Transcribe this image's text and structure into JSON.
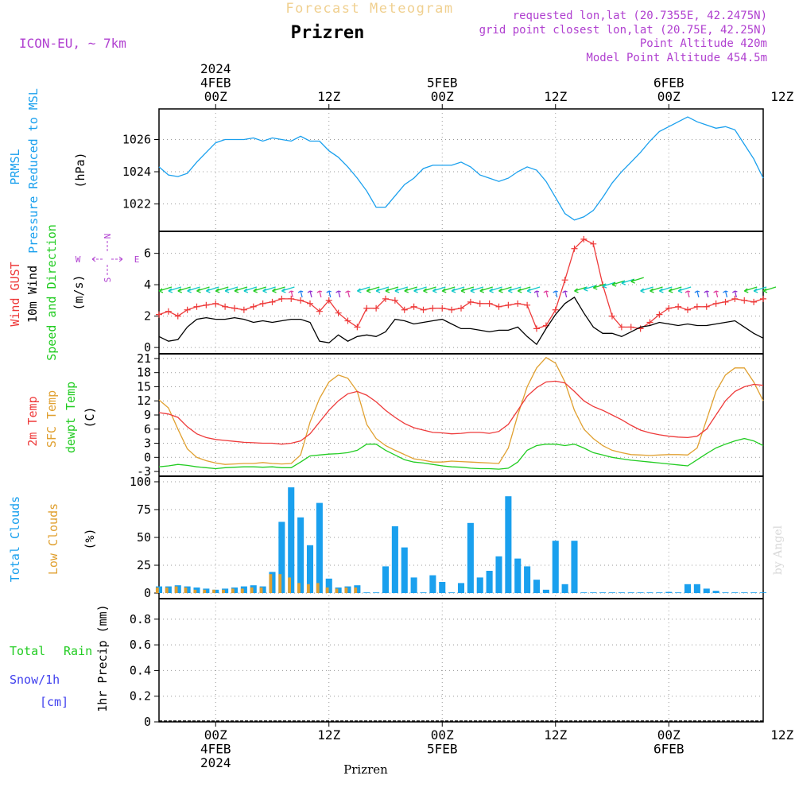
{
  "header": {
    "product": "Forecast Meteogram",
    "station": "Prizren",
    "model": "ICON-EU, ~ 7km",
    "requested": "requested lon,lat (20.7355E, 42.2475N)",
    "grid_point": "grid point closest lon,lat (20.75E, 42.25N)",
    "point_altitude": "Point Altitude 420m",
    "model_altitude": "Model Point Altitude 454.5m",
    "footer_station": "Prizren",
    "watermark": "by Angel"
  },
  "colors": {
    "pressure": "#1aa0ee",
    "gust": "#ee3a3a",
    "wind": "#000000",
    "temp": "#ee3a3a",
    "sfc_temp": "#e0a030",
    "dewpt": "#22cc22",
    "total_cloud": "#1aa0ee",
    "low_cloud": "#e0a030",
    "label_purple": "#b040d0",
    "title_gold": "#f0d090",
    "rain_green": "#22cc22",
    "snow_blue": "#4040ee"
  },
  "time_axis": {
    "start_hour": -6,
    "end_hour": 58,
    "top_ticks": [
      {
        "h": 0,
        "lines": [
          "2024",
          "4FEB",
          "00Z"
        ]
      },
      {
        "h": 12,
        "lines": [
          "12Z"
        ]
      },
      {
        "h": 24,
        "lines": [
          "5FEB",
          "00Z"
        ]
      },
      {
        "h": 36,
        "lines": [
          "12Z"
        ]
      },
      {
        "h": 48,
        "lines": [
          "6FEB",
          "00Z"
        ]
      },
      {
        "h": 60,
        "lines": [
          "12Z"
        ]
      }
    ],
    "bottom_ticks": [
      {
        "h": 0,
        "lines": [
          "00Z",
          "4FEB",
          "2024"
        ]
      },
      {
        "h": 12,
        "lines": [
          "12Z"
        ]
      },
      {
        "h": 24,
        "lines": [
          "00Z",
          "5FEB"
        ]
      },
      {
        "h": 36,
        "lines": [
          "12Z"
        ]
      },
      {
        "h": 48,
        "lines": [
          "00Z",
          "6FEB"
        ]
      },
      {
        "h": 60,
        "lines": [
          "12Z"
        ]
      }
    ]
  },
  "panels": {
    "pressure": {
      "labels": [
        "PRMSL",
        "Pressure Reduced to MSL"
      ],
      "unit": "(hPa)",
      "yticks": [
        "1022",
        "1024",
        "1026"
      ]
    },
    "wind": {
      "labels": [
        "Wind GUST",
        "10m Wind",
        "Speed and Direction"
      ],
      "unit": "(m/s)",
      "yticks": [
        "0",
        "2",
        "4",
        "6"
      ],
      "compass": {
        "n": "N",
        "s": "S",
        "w": "W",
        "e": "E"
      }
    },
    "temp": {
      "labels": [
        "2m Temp",
        "SFC Temp",
        "dewpt Temp"
      ],
      "unit": "(C)",
      "yticks": [
        "-3",
        "0",
        "3",
        "6",
        "9",
        "12",
        "15",
        "18",
        "21"
      ]
    },
    "cloud": {
      "labels": [
        "Total Clouds",
        "Low Clouds"
      ],
      "unit": "(%)",
      "yticks": [
        "0",
        "25",
        "50",
        "75",
        "100"
      ]
    },
    "precip": {
      "labels": [
        "Total",
        "Rain",
        "Snow/1h",
        "[cm]"
      ],
      "unit": "1hr Precip (mm)",
      "yticks": [
        "0",
        "0.2",
        "0.4",
        "0.6",
        "0.8"
      ]
    }
  },
  "chart_data": [
    {
      "type": "line",
      "name": "PRMSL",
      "ylabel": "(hPa)",
      "ylim": [
        1020.3,
        1027.9
      ],
      "x_hours": [
        -6,
        -5,
        -4,
        -3,
        -2,
        -1,
        0,
        1,
        2,
        3,
        4,
        5,
        6,
        7,
        8,
        9,
        10,
        11,
        12,
        13,
        14,
        15,
        16,
        17,
        18,
        19,
        20,
        21,
        22,
        23,
        24,
        25,
        26,
        27,
        28,
        29,
        30,
        31,
        32,
        33,
        34,
        35,
        36,
        37,
        38,
        39,
        40,
        41,
        42,
        43,
        44,
        45,
        46,
        47,
        48,
        49,
        50,
        51,
        52,
        53,
        54,
        55,
        56,
        57,
        58
      ],
      "series": [
        {
          "values": [
            1024.3,
            1023.8,
            1023.7,
            1023.9,
            1024.6,
            1025.2,
            1025.8,
            1026.0,
            1026.0,
            1026.0,
            1026.1,
            1025.9,
            1026.1,
            1026.0,
            1025.9,
            1026.2,
            1025.9,
            1025.9,
            1025.3,
            1024.9,
            1024.3,
            1023.6,
            1022.8,
            1021.8,
            1021.8,
            1022.5,
            1023.2,
            1023.6,
            1024.2,
            1024.4,
            1024.4,
            1024.4,
            1024.6,
            1024.3,
            1023.8,
            1023.6,
            1023.4,
            1023.6,
            1024.0,
            1024.3,
            1024.1,
            1023.4,
            1022.4,
            1021.4,
            1021.0,
            1021.2,
            1021.6,
            1022.4,
            1023.3,
            1024.0,
            1024.6,
            1025.2,
            1025.9,
            1026.5,
            1026.8,
            1027.1,
            1027.4,
            1027.1,
            1026.9,
            1026.7,
            1026.8,
            1026.6,
            1025.7,
            1024.8,
            1023.6
          ]
        }
      ]
    },
    {
      "type": "line",
      "name": "Wind",
      "ylabel": "(m/s)",
      "ylim": [
        -0.4,
        7.4
      ],
      "x_hours": [
        -6,
        -5,
        -4,
        -3,
        -2,
        -1,
        0,
        1,
        2,
        3,
        4,
        5,
        6,
        7,
        8,
        9,
        10,
        11,
        12,
        13,
        14,
        15,
        16,
        17,
        18,
        19,
        20,
        21,
        22,
        23,
        24,
        25,
        26,
        27,
        28,
        29,
        30,
        31,
        32,
        33,
        34,
        35,
        36,
        37,
        38,
        39,
        40,
        41,
        42,
        43,
        44,
        45,
        46,
        47,
        48,
        49,
        50,
        51,
        52,
        53,
        54,
        55,
        56,
        57,
        58
      ],
      "series": [
        {
          "name": "Wind GUST",
          "marker": "+",
          "values": [
            2.1,
            2.3,
            2.0,
            2.4,
            2.6,
            2.7,
            2.8,
            2.6,
            2.5,
            2.4,
            2.6,
            2.8,
            2.9,
            3.1,
            3.1,
            3.0,
            2.8,
            2.3,
            3.0,
            2.2,
            1.7,
            1.3,
            2.5,
            2.5,
            3.1,
            3.0,
            2.4,
            2.6,
            2.4,
            2.5,
            2.5,
            2.4,
            2.5,
            2.9,
            2.8,
            2.8,
            2.6,
            2.7,
            2.8,
            2.7,
            1.2,
            1.4,
            2.4,
            4.3,
            6.3,
            6.9,
            6.6,
            4.0,
            2.0,
            1.3,
            1.3,
            1.2,
            1.6,
            2.1,
            2.5,
            2.6,
            2.4,
            2.6,
            2.6,
            2.8,
            2.9,
            3.1,
            3.0,
            2.9,
            3.1
          ]
        },
        {
          "name": "10m Wind",
          "values": [
            0.7,
            0.4,
            0.5,
            1.3,
            1.8,
            1.9,
            1.8,
            1.8,
            1.9,
            1.8,
            1.6,
            1.7,
            1.6,
            1.7,
            1.8,
            1.8,
            1.6,
            0.4,
            0.3,
            0.8,
            0.4,
            0.7,
            0.8,
            0.7,
            1.0,
            1.8,
            1.7,
            1.5,
            1.6,
            1.7,
            1.8,
            1.5,
            1.2,
            1.2,
            1.1,
            1.0,
            1.1,
            1.1,
            1.3,
            0.7,
            0.2,
            1.2,
            2.1,
            2.8,
            3.2,
            2.2,
            1.3,
            0.9,
            0.9,
            0.7,
            1.0,
            1.3,
            1.4,
            1.6,
            1.5,
            1.4,
            1.5,
            1.4,
            1.4,
            1.5,
            1.6,
            1.7,
            1.3,
            0.9,
            0.6
          ]
        }
      ]
    },
    {
      "type": "line",
      "name": "Temperature",
      "ylabel": "(C)",
      "ylim": [
        -4,
        22
      ],
      "x_hours": [
        -6,
        -5,
        -4,
        -3,
        -2,
        -1,
        0,
        1,
        2,
        3,
        4,
        5,
        6,
        7,
        8,
        9,
        10,
        11,
        12,
        13,
        14,
        15,
        16,
        17,
        18,
        19,
        20,
        21,
        22,
        23,
        24,
        25,
        26,
        27,
        28,
        29,
        30,
        31,
        32,
        33,
        34,
        35,
        36,
        37,
        38,
        39,
        40,
        41,
        42,
        43,
        44,
        45,
        46,
        47,
        48,
        49,
        50,
        51,
        52,
        53,
        54,
        55,
        56,
        57,
        58
      ],
      "series": [
        {
          "name": "2m Temp",
          "values": [
            9.5,
            9.2,
            8.5,
            6.5,
            5.0,
            4.2,
            3.8,
            3.6,
            3.4,
            3.2,
            3.1,
            3.0,
            3.0,
            2.8,
            3.0,
            3.5,
            5.0,
            7.5,
            10.0,
            12.0,
            13.5,
            14.0,
            13.2,
            11.8,
            10.0,
            8.5,
            7.2,
            6.3,
            5.8,
            5.3,
            5.2,
            5.0,
            5.1,
            5.3,
            5.3,
            5.1,
            5.5,
            7.0,
            10.0,
            13.0,
            14.8,
            16.0,
            16.2,
            15.8,
            14.0,
            12.0,
            10.8,
            10.0,
            9.0,
            8.0,
            6.8,
            5.8,
            5.2,
            4.8,
            4.5,
            4.3,
            4.2,
            4.5,
            6.0,
            9.0,
            12.0,
            14.0,
            15.0,
            15.5,
            15.3
          ]
        },
        {
          "name": "SFC Temp",
          "values": [
            12.2,
            10.5,
            6.0,
            1.8,
            0.0,
            -0.7,
            -1.2,
            -1.5,
            -1.4,
            -1.3,
            -1.3,
            -1.1,
            -1.3,
            -1.4,
            -1.3,
            0.5,
            7.5,
            12.5,
            16.0,
            17.5,
            16.8,
            14.0,
            7.0,
            4.0,
            2.5,
            1.5,
            0.6,
            -0.3,
            -0.6,
            -1.0,
            -1.0,
            -0.8,
            -0.9,
            -1.0,
            -1.1,
            -1.2,
            -1.3,
            2.0,
            9.0,
            15.0,
            19.0,
            21.2,
            20.0,
            16.0,
            10.0,
            6.0,
            4.0,
            2.5,
            1.5,
            1.0,
            0.6,
            0.5,
            0.4,
            0.5,
            0.6,
            0.6,
            0.5,
            2.0,
            8.0,
            14.0,
            17.5,
            19.0,
            19.0,
            16.0,
            12.0
          ]
        },
        {
          "name": "dewpt Temp",
          "values": [
            -2.0,
            -1.8,
            -1.5,
            -1.7,
            -2.0,
            -2.2,
            -2.4,
            -2.2,
            -2.1,
            -2.0,
            -2.0,
            -2.1,
            -2.0,
            -2.2,
            -2.2,
            -1.0,
            0.3,
            0.5,
            0.7,
            0.8,
            1.0,
            1.5,
            2.8,
            2.8,
            1.5,
            0.5,
            -0.5,
            -1.0,
            -1.2,
            -1.5,
            -1.8,
            -2.0,
            -2.1,
            -2.3,
            -2.4,
            -2.4,
            -2.5,
            -2.3,
            -1.0,
            1.5,
            2.5,
            2.8,
            2.8,
            2.5,
            2.8,
            2.0,
            1.0,
            0.5,
            0.0,
            -0.3,
            -0.6,
            -0.8,
            -1.0,
            -1.2,
            -1.4,
            -1.6,
            -1.8,
            -0.5,
            0.8,
            2.0,
            2.8,
            3.5,
            4.0,
            3.5,
            2.5
          ]
        }
      ]
    },
    {
      "type": "bar",
      "name": "Clouds",
      "ylabel": "(%)",
      "ylim": [
        -5,
        105
      ],
      "x_hours": [
        -6,
        -5,
        -4,
        -3,
        -2,
        -1,
        0,
        1,
        2,
        3,
        4,
        5,
        6,
        7,
        8,
        9,
        10,
        11,
        12,
        13,
        14,
        15,
        16,
        17,
        18,
        19,
        20,
        21,
        22,
        23,
        24,
        25,
        26,
        27,
        28,
        29,
        30,
        31,
        32,
        33,
        34,
        35,
        36,
        37,
        38,
        39,
        40,
        41,
        42,
        43,
        44,
        45,
        46,
        47,
        48,
        49,
        50,
        51,
        52,
        53,
        54,
        55,
        56,
        57,
        58
      ],
      "series": [
        {
          "name": "Total Clouds",
          "values": [
            6,
            6,
            7,
            6,
            5,
            4,
            3,
            4,
            5,
            6,
            7,
            6,
            19,
            64,
            95,
            68,
            43,
            81,
            13,
            5,
            6,
            7,
            0,
            0,
            24,
            60,
            41,
            14,
            0,
            16,
            10,
            0,
            9,
            63,
            14,
            20,
            33,
            87,
            31,
            24,
            12,
            3,
            47,
            8,
            47,
            0,
            0,
            0,
            0,
            0,
            0,
            0,
            0,
            0,
            1,
            0,
            8,
            8,
            4,
            2,
            0,
            0,
            0,
            0,
            0
          ]
        },
        {
          "name": "Low Clouds",
          "values": [
            5,
            5,
            6,
            5,
            3,
            3,
            3,
            3,
            4,
            4,
            5,
            5,
            17,
            17,
            14,
            9,
            8,
            9,
            5,
            4,
            5,
            5,
            0,
            0,
            0,
            0,
            0,
            0,
            0,
            0,
            0,
            0,
            0,
            0,
            0,
            0,
            0,
            0,
            0,
            0,
            0,
            0,
            0,
            0,
            0,
            0,
            0,
            0,
            0,
            0,
            0,
            0,
            0,
            0,
            0,
            0,
            0,
            0,
            0,
            0,
            0,
            0,
            0,
            0,
            0
          ]
        }
      ]
    },
    {
      "type": "bar",
      "name": "Precipitation",
      "ylabel": "1hr Precip (mm)",
      "ylim": [
        0,
        0.96
      ],
      "x_hours": [
        -6,
        58
      ],
      "series": [
        {
          "name": "Total Rain",
          "values": [
            0,
            0
          ]
        }
      ]
    }
  ]
}
